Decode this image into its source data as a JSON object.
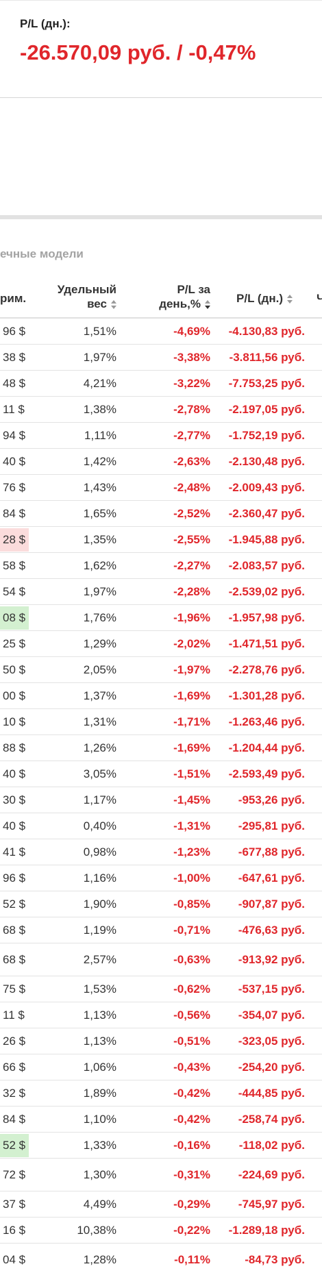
{
  "summary": {
    "pl_day_label": "P/L (дн.):",
    "pl_day_value": "-26.570,09 руб. / -0,47%"
  },
  "section": {
    "title": "ечные модели"
  },
  "table": {
    "headers": {
      "price": "рим.",
      "weight_line1": "Удельный",
      "weight_line2": "вес",
      "pct_line1": "P/L за",
      "pct_line2": "день,%",
      "pl": "P/L (дн.)",
      "next": "Ч"
    },
    "rows": [
      {
        "price": "96 $",
        "weight": "1,51%",
        "pct": "-4,69%",
        "pl": "-4.130,83 руб.",
        "hl": ""
      },
      {
        "price": "38 $",
        "weight": "1,97%",
        "pct": "-3,38%",
        "pl": "-3.811,56 руб.",
        "hl": ""
      },
      {
        "price": "48 $",
        "weight": "4,21%",
        "pct": "-3,22%",
        "pl": "-7.753,25 руб.",
        "hl": ""
      },
      {
        "price": "11 $",
        "weight": "1,38%",
        "pct": "-2,78%",
        "pl": "-2.197,05 руб.",
        "hl": ""
      },
      {
        "price": "94 $",
        "weight": "1,11%",
        "pct": "-2,77%",
        "pl": "-1.752,19 руб.",
        "hl": ""
      },
      {
        "price": "40 $",
        "weight": "1,42%",
        "pct": "-2,63%",
        "pl": "-2.130,48 руб.",
        "hl": ""
      },
      {
        "price": "76 $",
        "weight": "1,43%",
        "pct": "-2,48%",
        "pl": "-2.009,43 руб.",
        "hl": ""
      },
      {
        "price": "84 $",
        "weight": "1,65%",
        "pct": "-2,52%",
        "pl": "-2.360,47 руб.",
        "hl": ""
      },
      {
        "price": "28 $",
        "weight": "1,35%",
        "pct": "-2,55%",
        "pl": "-1.945,88 руб.",
        "hl": "red"
      },
      {
        "price": "58 $",
        "weight": "1,62%",
        "pct": "-2,27%",
        "pl": "-2.083,57 руб.",
        "hl": ""
      },
      {
        "price": "54 $",
        "weight": "1,97%",
        "pct": "-2,28%",
        "pl": "-2.539,02 руб.",
        "hl": ""
      },
      {
        "price": "08 $",
        "weight": "1,76%",
        "pct": "-1,96%",
        "pl": "-1.957,98 руб.",
        "hl": "green"
      },
      {
        "price": "25 $",
        "weight": "1,29%",
        "pct": "-2,02%",
        "pl": "-1.471,51 руб.",
        "hl": ""
      },
      {
        "price": "50 $",
        "weight": "2,05%",
        "pct": "-1,97%",
        "pl": "-2.278,76 руб.",
        "hl": ""
      },
      {
        "price": "00 $",
        "weight": "1,37%",
        "pct": "-1,69%",
        "pl": "-1.301,28 руб.",
        "hl": ""
      },
      {
        "price": "10 $",
        "weight": "1,31%",
        "pct": "-1,71%",
        "pl": "-1.263,46 руб.",
        "hl": ""
      },
      {
        "price": "88 $",
        "weight": "1,26%",
        "pct": "-1,69%",
        "pl": "-1.204,44 руб.",
        "hl": ""
      },
      {
        "price": "40 $",
        "weight": "3,05%",
        "pct": "-1,51%",
        "pl": "-2.593,49 руб.",
        "hl": ""
      },
      {
        "price": "30 $",
        "weight": "1,17%",
        "pct": "-1,45%",
        "pl": "-953,26 руб.",
        "hl": ""
      },
      {
        "price": "40 $",
        "weight": "0,40%",
        "pct": "-1,31%",
        "pl": "-295,81 руб.",
        "hl": ""
      },
      {
        "price": "41 $",
        "weight": "0,98%",
        "pct": "-1,23%",
        "pl": "-677,88 руб.",
        "hl": ""
      },
      {
        "price": "96 $",
        "weight": "1,16%",
        "pct": "-1,00%",
        "pl": "-647,61 руб.",
        "hl": ""
      },
      {
        "price": "52 $",
        "weight": "1,90%",
        "pct": "-0,85%",
        "pl": "-907,87 руб.",
        "hl": ""
      },
      {
        "price": "68 $",
        "weight": "1,19%",
        "pct": "-0,71%",
        "pl": "-476,63 руб.",
        "hl": ""
      },
      {
        "price": "68 $",
        "weight": "2,57%",
        "pct": "-0,63%",
        "pl": "-913,92 руб.",
        "hl": "",
        "tall": true
      },
      {
        "price": "75 $",
        "weight": "1,53%",
        "pct": "-0,62%",
        "pl": "-537,15 руб.",
        "hl": ""
      },
      {
        "price": "11 $",
        "weight": "1,13%",
        "pct": "-0,56%",
        "pl": "-354,07 руб.",
        "hl": ""
      },
      {
        "price": "26 $",
        "weight": "1,13%",
        "pct": "-0,51%",
        "pl": "-323,05 руб.",
        "hl": ""
      },
      {
        "price": "66 $",
        "weight": "1,06%",
        "pct": "-0,43%",
        "pl": "-254,20 руб.",
        "hl": ""
      },
      {
        "price": "32 $",
        "weight": "1,89%",
        "pct": "-0,42%",
        "pl": "-444,85 руб.",
        "hl": ""
      },
      {
        "price": "84 $",
        "weight": "1,10%",
        "pct": "-0,42%",
        "pl": "-258,74 руб.",
        "hl": ""
      },
      {
        "price": "52 $",
        "weight": "1,33%",
        "pct": "-0,16%",
        "pl": "-118,02 руб.",
        "hl": "green"
      },
      {
        "price": "72 $",
        "weight": "1,30%",
        "pct": "-0,31%",
        "pl": "-224,69 руб.",
        "hl": "",
        "tall": true
      },
      {
        "price": "37 $",
        "weight": "4,49%",
        "pct": "-0,29%",
        "pl": "-745,97 руб.",
        "hl": ""
      },
      {
        "price": "16 $",
        "weight": "10,38%",
        "pct": "-0,22%",
        "pl": "-1.289,18 руб.",
        "hl": ""
      },
      {
        "price": "04 $",
        "weight": "1,28%",
        "pct": "-0,11%",
        "pl": "-84,73 руб.",
        "hl": "",
        "tall": true
      }
    ]
  }
}
